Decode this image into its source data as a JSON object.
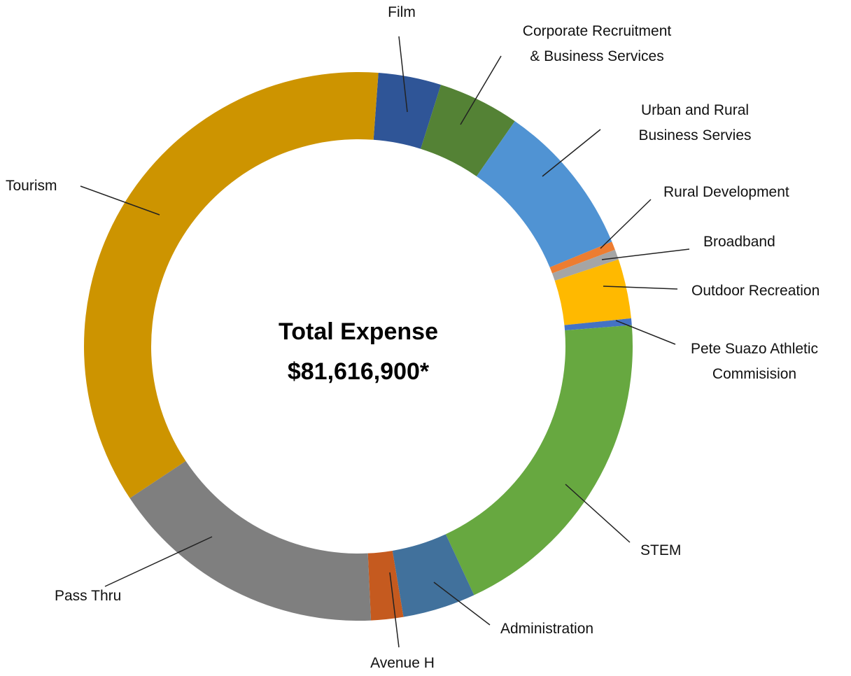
{
  "chart_data": {
    "type": "donut",
    "title": "Total Expense",
    "subtitle": "$81,616,900*",
    "categories": [
      "Film",
      "Corporate Recruitment\n& Business Services",
      "Urban and Rural\nBusiness Servies",
      "Rural Development",
      "Broadband",
      "Outdoor Recreation",
      "Pete Suazo Athletic\nCommisision",
      "STEM",
      "Administration",
      "Avenue H",
      "Pass Thru",
      "Tourism"
    ],
    "values": [
      3.7,
      4.8,
      9.1,
      0.5,
      0.6,
      3.5,
      0.4,
      19.3,
      4.3,
      1.9,
      16.4,
      35.5
    ],
    "colors": [
      "#2f5597",
      "#548235",
      "#5093d3",
      "#ed7d31",
      "#a5a5a5",
      "#ffb900",
      "#4472c4",
      "#67a840",
      "#41719c",
      "#c55a1f",
      "#7f7f7f",
      "#cd9400"
    ]
  }
}
